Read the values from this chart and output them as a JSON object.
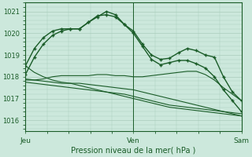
{
  "title": "Pression niveau de la mer( hPa )",
  "bg_color": "#cce8dc",
  "grid_color": "#aaccbb",
  "line_color": "#1a5c28",
  "ylim": [
    1015.5,
    1021.4
  ],
  "yticks": [
    1016,
    1017,
    1018,
    1019,
    1020,
    1021
  ],
  "xtick_labels": [
    "Jeu",
    "Ven",
    "Sam"
  ],
  "xtick_positions": [
    0,
    0.5,
    1.0
  ],
  "num_points": 25,
  "lines": [
    {
      "vals": [
        1018.5,
        1019.3,
        1019.8,
        1020.1,
        1020.2,
        1020.2,
        1020.2,
        1020.5,
        1020.8,
        1020.85,
        1020.75,
        1020.4,
        1020.1,
        1019.5,
        1019.0,
        1018.8,
        1018.85,
        1019.1,
        1019.3,
        1019.2,
        1019.0,
        1018.9,
        1018.0,
        1017.3,
        1016.9
      ],
      "has_marker": true
    },
    {
      "vals": [
        1018.1,
        1018.9,
        1019.5,
        1019.9,
        1020.1,
        1020.2,
        1020.2,
        1020.5,
        1020.75,
        1021.0,
        1020.85,
        1020.4,
        1020.0,
        1019.4,
        1018.8,
        1018.55,
        1018.65,
        1018.75,
        1018.75,
        1018.6,
        1018.4,
        1018.0,
        1017.4,
        1016.9,
        1016.4
      ],
      "has_marker": true
    },
    {
      "vals": [
        1017.85,
        1017.85,
        1017.9,
        1018.0,
        1018.05,
        1018.05,
        1018.05,
        1018.05,
        1018.1,
        1018.1,
        1018.05,
        1018.05,
        1018.0,
        1018.0,
        1018.05,
        1018.1,
        1018.15,
        1018.2,
        1018.25,
        1018.25,
        1018.1,
        1017.85,
        1017.5,
        1017.2,
        1016.9
      ],
      "has_marker": false
    },
    {
      "vals": [
        1017.9,
        1017.85,
        1017.8,
        1017.75,
        1017.7,
        1017.7,
        1017.7,
        1017.65,
        1017.6,
        1017.55,
        1017.5,
        1017.45,
        1017.4,
        1017.3,
        1017.2,
        1017.1,
        1017.0,
        1016.9,
        1016.8,
        1016.7,
        1016.6,
        1016.5,
        1016.4,
        1016.35,
        1016.3
      ],
      "has_marker": false
    },
    {
      "vals": [
        1018.5,
        1018.2,
        1018.0,
        1017.85,
        1017.75,
        1017.7,
        1017.6,
        1017.5,
        1017.4,
        1017.3,
        1017.2,
        1017.1,
        1017.0,
        1016.9,
        1016.8,
        1016.7,
        1016.6,
        1016.55,
        1016.5,
        1016.45,
        1016.4,
        1016.35,
        1016.3,
        1016.25,
        1016.2
      ],
      "has_marker": false
    },
    {
      "vals": [
        1017.75,
        1017.7,
        1017.65,
        1017.6,
        1017.55,
        1017.5,
        1017.45,
        1017.4,
        1017.35,
        1017.3,
        1017.25,
        1017.2,
        1017.1,
        1017.0,
        1016.9,
        1016.8,
        1016.7,
        1016.65,
        1016.6,
        1016.55,
        1016.5,
        1016.45,
        1016.4,
        1016.3,
        1016.2
      ],
      "has_marker": false
    }
  ]
}
